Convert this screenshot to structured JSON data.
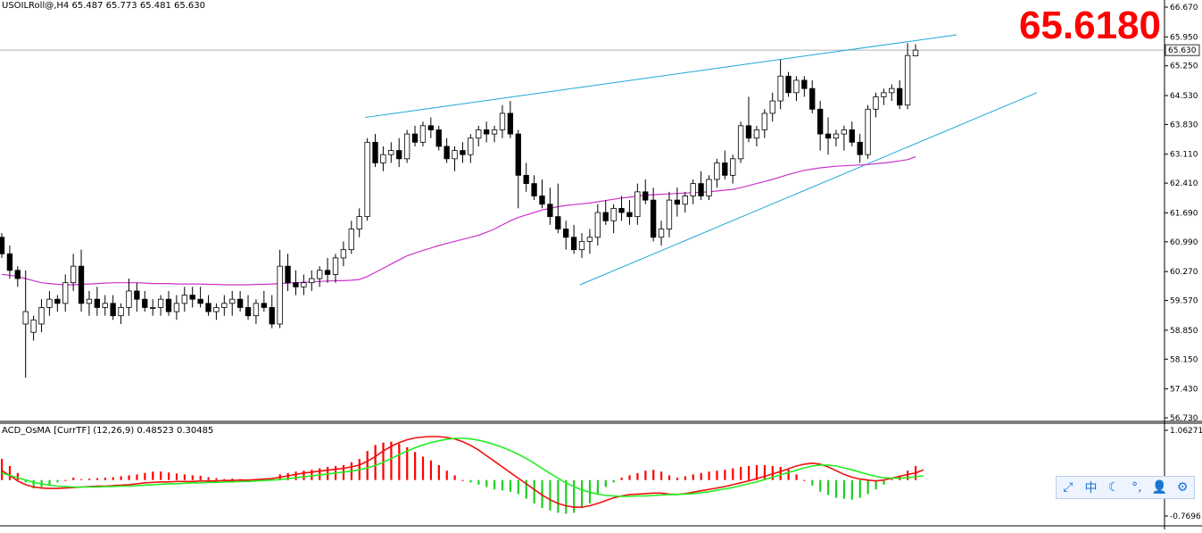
{
  "header": {
    "symbol": "USOILRoll@,H4",
    "ohlc": "65.487 65.773 65.481 65.630",
    "big_price": "65.6180"
  },
  "indicator": {
    "label": "ACD_OsMA [CurrTF] (12,26,9) 0.48523 0.30485"
  },
  "toolbar": {
    "items": [
      {
        "name": "expand-icon",
        "glyph": "⤢"
      },
      {
        "name": "chinese-input-icon",
        "glyph": "中"
      },
      {
        "name": "moon-icon",
        "glyph": "☾"
      },
      {
        "name": "punctuation-icon",
        "glyph": "°,"
      },
      {
        "name": "user-icon",
        "glyph": "👤"
      },
      {
        "name": "gear-icon",
        "glyph": "⚙"
      }
    ]
  },
  "colors": {
    "bull_body": "#ffffff",
    "bear_body": "#000000",
    "candle_outline": "#000000",
    "moving_average": "#cc33cc",
    "trendline": "#1ea7d8",
    "price_line": "#b0b0b0",
    "hist_up": "#ff0000",
    "hist_down": "#22cc22",
    "macd_line": "#ee1111",
    "signal_line": "#22ee22",
    "big_price": "#ff0000"
  },
  "chart_data": [
    {
      "type": "candlestick",
      "yticks": [
        "66.670",
        "65.950",
        "65.250",
        "64.530",
        "63.830",
        "63.110",
        "62.410",
        "61.690",
        "60.990",
        "60.270",
        "59.570",
        "58.850",
        "58.150",
        "57.430",
        "56.730"
      ],
      "ylim": [
        56.73,
        66.67
      ],
      "current_price_label": "65.630",
      "candles": [
        [
          61.1,
          61.2,
          60.6,
          60.7
        ],
        [
          60.7,
          60.9,
          60.1,
          60.3
        ],
        [
          60.3,
          60.4,
          59.9,
          60.1
        ],
        [
          59.0,
          60.3,
          57.7,
          59.3
        ],
        [
          58.8,
          59.2,
          58.6,
          59.1
        ],
        [
          59.0,
          59.6,
          58.8,
          59.4
        ],
        [
          59.4,
          59.8,
          59.2,
          59.6
        ],
        [
          59.6,
          59.7,
          59.3,
          59.5
        ],
        [
          59.5,
          60.2,
          59.3,
          60.0
        ],
        [
          60.0,
          60.7,
          59.8,
          60.4
        ],
        [
          60.4,
          60.8,
          59.3,
          59.5
        ],
        [
          59.5,
          59.8,
          59.2,
          59.6
        ],
        [
          59.6,
          59.9,
          59.2,
          59.4
        ],
        [
          59.4,
          59.7,
          59.2,
          59.5
        ],
        [
          59.5,
          59.7,
          59.1,
          59.2
        ],
        [
          59.2,
          59.5,
          59.0,
          59.4
        ],
        [
          59.4,
          60.1,
          59.2,
          59.8
        ],
        [
          59.8,
          60.0,
          59.3,
          59.6
        ],
        [
          59.6,
          59.8,
          59.3,
          59.4
        ],
        [
          59.4,
          59.6,
          59.2,
          59.4
        ],
        [
          59.4,
          59.7,
          59.2,
          59.6
        ],
        [
          59.6,
          59.8,
          59.2,
          59.3
        ],
        [
          59.3,
          59.7,
          59.1,
          59.5
        ],
        [
          59.5,
          59.9,
          59.3,
          59.7
        ],
        [
          59.7,
          59.9,
          59.4,
          59.6
        ],
        [
          59.6,
          59.9,
          59.4,
          59.5
        ],
        [
          59.5,
          59.7,
          59.2,
          59.3
        ],
        [
          59.3,
          59.5,
          59.1,
          59.4
        ],
        [
          59.4,
          59.7,
          59.2,
          59.5
        ],
        [
          59.5,
          59.8,
          59.2,
          59.6
        ],
        [
          59.6,
          59.8,
          59.3,
          59.4
        ],
        [
          59.4,
          59.7,
          59.1,
          59.2
        ],
        [
          59.2,
          59.6,
          59.0,
          59.5
        ],
        [
          59.5,
          59.8,
          59.3,
          59.4
        ],
        [
          59.4,
          59.7,
          58.9,
          59.0
        ],
        [
          59.0,
          60.8,
          58.9,
          60.4
        ],
        [
          60.4,
          60.7,
          59.8,
          60.0
        ],
        [
          60.0,
          60.3,
          59.7,
          59.9
        ],
        [
          59.9,
          60.2,
          59.7,
          60.0
        ],
        [
          60.0,
          60.3,
          59.8,
          60.1
        ],
        [
          60.1,
          60.4,
          59.9,
          60.3
        ],
        [
          60.3,
          60.6,
          60.0,
          60.2
        ],
        [
          60.2,
          60.7,
          60.0,
          60.6
        ],
        [
          60.6,
          61.0,
          60.4,
          60.8
        ],
        [
          60.8,
          61.5,
          60.7,
          61.3
        ],
        [
          61.3,
          61.8,
          61.1,
          61.6
        ],
        [
          61.6,
          63.5,
          61.5,
          63.4
        ],
        [
          63.4,
          63.6,
          62.8,
          62.9
        ],
        [
          62.9,
          63.3,
          62.7,
          63.1
        ],
        [
          63.1,
          63.4,
          62.9,
          63.2
        ],
        [
          63.2,
          63.5,
          62.8,
          63.0
        ],
        [
          63.0,
          63.7,
          62.9,
          63.6
        ],
        [
          63.6,
          63.8,
          63.3,
          63.4
        ],
        [
          63.4,
          63.9,
          63.3,
          63.8
        ],
        [
          63.8,
          64.0,
          63.5,
          63.7
        ],
        [
          63.7,
          63.8,
          63.2,
          63.3
        ],
        [
          63.3,
          63.5,
          62.9,
          63.0
        ],
        [
          63.0,
          63.3,
          62.7,
          63.2
        ],
        [
          63.2,
          63.4,
          62.9,
          63.1
        ],
        [
          63.1,
          63.6,
          62.9,
          63.5
        ],
        [
          63.5,
          63.8,
          63.3,
          63.7
        ],
        [
          63.7,
          63.9,
          63.4,
          63.6
        ],
        [
          63.6,
          63.8,
          63.4,
          63.7
        ],
        [
          63.7,
          64.3,
          63.5,
          64.1
        ],
        [
          64.1,
          64.4,
          63.5,
          63.6
        ],
        [
          63.6,
          63.7,
          61.8,
          62.6
        ],
        [
          62.6,
          62.9,
          62.2,
          62.4
        ],
        [
          62.4,
          62.6,
          62.0,
          62.1
        ],
        [
          62.1,
          62.5,
          61.8,
          61.9
        ],
        [
          61.9,
          62.3,
          61.4,
          61.6
        ],
        [
          61.6,
          62.4,
          61.2,
          61.3
        ],
        [
          61.3,
          61.5,
          60.8,
          61.1
        ],
        [
          61.1,
          61.4,
          60.7,
          60.8
        ],
        [
          60.8,
          61.2,
          60.6,
          61.0
        ],
        [
          61.0,
          61.3,
          60.7,
          61.1
        ],
        [
          61.1,
          61.9,
          60.9,
          61.7
        ],
        [
          61.7,
          62.0,
          61.4,
          61.5
        ],
        [
          61.5,
          61.9,
          61.2,
          61.8
        ],
        [
          61.8,
          62.1,
          61.5,
          61.7
        ],
        [
          61.7,
          62.0,
          61.4,
          61.6
        ],
        [
          61.6,
          62.4,
          61.4,
          62.2
        ],
        [
          62.2,
          62.5,
          61.9,
          62.0
        ],
        [
          62.0,
          62.3,
          61.0,
          61.1
        ],
        [
          61.1,
          61.5,
          60.9,
          61.3
        ],
        [
          61.3,
          62.2,
          61.1,
          62.0
        ],
        [
          62.0,
          62.3,
          61.6,
          61.9
        ],
        [
          61.9,
          62.2,
          61.7,
          62.1
        ],
        [
          62.1,
          62.5,
          61.9,
          62.4
        ],
        [
          62.4,
          62.7,
          62.0,
          62.1
        ],
        [
          62.1,
          62.6,
          62.0,
          62.5
        ],
        [
          62.5,
          63.0,
          62.3,
          62.9
        ],
        [
          62.9,
          63.2,
          62.5,
          62.6
        ],
        [
          62.6,
          63.1,
          62.4,
          63.0
        ],
        [
          63.0,
          63.9,
          62.9,
          63.8
        ],
        [
          63.8,
          64.5,
          63.4,
          63.5
        ],
        [
          63.5,
          63.8,
          63.3,
          63.7
        ],
        [
          63.7,
          64.2,
          63.5,
          64.1
        ],
        [
          64.1,
          64.6,
          63.9,
          64.4
        ],
        [
          64.4,
          65.4,
          64.2,
          65.0
        ],
        [
          65.0,
          65.1,
          64.5,
          64.6
        ],
        [
          64.6,
          65.0,
          64.4,
          64.9
        ],
        [
          64.9,
          65.0,
          64.5,
          64.7
        ],
        [
          64.7,
          64.9,
          64.1,
          64.2
        ],
        [
          64.2,
          64.4,
          63.2,
          63.6
        ],
        [
          63.6,
          64.0,
          63.1,
          63.5
        ],
        [
          63.5,
          63.7,
          63.3,
          63.6
        ],
        [
          63.6,
          63.8,
          63.2,
          63.7
        ],
        [
          63.7,
          63.9,
          63.3,
          63.4
        ],
        [
          63.4,
          63.6,
          62.9,
          63.1
        ],
        [
          63.1,
          64.3,
          63.0,
          64.2
        ],
        [
          64.2,
          64.6,
          64.0,
          64.5
        ],
        [
          64.5,
          64.7,
          64.3,
          64.6
        ],
        [
          64.6,
          64.8,
          64.4,
          64.7
        ],
        [
          64.7,
          64.9,
          64.2,
          64.3
        ],
        [
          64.3,
          65.8,
          64.2,
          65.5
        ],
        [
          65.49,
          65.77,
          65.48,
          65.63
        ]
      ],
      "moving_average": [
        60.2,
        60.18,
        60.15,
        60.1,
        60.05,
        60.0,
        59.98,
        59.96,
        59.95,
        59.95,
        59.96,
        59.97,
        59.98,
        59.99,
        60.0,
        60.0,
        60.0,
        60.0,
        59.99,
        59.98,
        59.98,
        59.98,
        59.97,
        59.97,
        59.97,
        59.97,
        59.96,
        59.96,
        59.95,
        59.95,
        59.95,
        59.95,
        59.96,
        59.96,
        59.97,
        59.98,
        59.99,
        60.0,
        60.01,
        60.02,
        60.03,
        60.04,
        60.05,
        60.05,
        60.06,
        60.08,
        60.15,
        60.25,
        60.35,
        60.45,
        60.55,
        60.65,
        60.72,
        60.78,
        60.84,
        60.9,
        60.95,
        61.0,
        61.05,
        61.1,
        61.15,
        61.22,
        61.3,
        61.4,
        61.5,
        61.58,
        61.64,
        61.7,
        61.76,
        61.8,
        61.84,
        61.87,
        61.89,
        61.91,
        61.93,
        61.96,
        61.99,
        62.02,
        62.05,
        62.07,
        62.1,
        62.12,
        62.13,
        62.14,
        62.15,
        62.16,
        62.17,
        62.18,
        62.19,
        62.2,
        62.22,
        62.24,
        62.26,
        62.3,
        62.35,
        62.4,
        62.45,
        62.5,
        62.56,
        62.62,
        62.67,
        62.72,
        62.75,
        62.78,
        62.8,
        62.82,
        62.83,
        62.84,
        62.85,
        62.86,
        62.88,
        62.9,
        62.92,
        62.95,
        62.98,
        63.05
      ]
    },
    {
      "type": "histogram-line",
      "yticks": [
        "1.06271",
        "-0.7696"
      ],
      "ylim": [
        -0.7696,
        1.06271
      ],
      "histogram": [
        0.45,
        0.3,
        0.15,
        -0.05,
        -0.18,
        -0.15,
        -0.1,
        -0.05,
        0.0,
        0.05,
        0.02,
        0.03,
        0.04,
        0.05,
        0.06,
        0.08,
        0.1,
        0.12,
        0.15,
        0.18,
        0.18,
        0.16,
        0.14,
        0.12,
        0.1,
        0.09,
        0.06,
        0.04,
        0.02,
        0.03,
        0.02,
        0.01,
        0.02,
        0.03,
        0.02,
        0.12,
        0.15,
        0.18,
        0.2,
        0.22,
        0.25,
        0.28,
        0.3,
        0.32,
        0.38,
        0.45,
        0.62,
        0.75,
        0.8,
        0.82,
        0.78,
        0.7,
        0.6,
        0.5,
        0.42,
        0.32,
        0.2,
        0.1,
        0.0,
        -0.05,
        -0.1,
        -0.15,
        -0.2,
        -0.22,
        -0.25,
        -0.3,
        -0.4,
        -0.5,
        -0.6,
        -0.65,
        -0.7,
        -0.72,
        -0.7,
        -0.6,
        -0.5,
        -0.3,
        -0.15,
        -0.05,
        0.05,
        0.1,
        0.15,
        0.2,
        0.22,
        0.18,
        0.1,
        0.05,
        0.08,
        0.12,
        0.15,
        0.18,
        0.2,
        0.22,
        0.25,
        0.28,
        0.3,
        0.32,
        0.32,
        0.3,
        0.28,
        0.22,
        0.12,
        0.0,
        -0.12,
        -0.25,
        -0.32,
        -0.38,
        -0.4,
        -0.42,
        -0.38,
        -0.3,
        -0.2,
        -0.1,
        0.02,
        0.1,
        0.2,
        0.3
      ],
      "macd": [
        0.2,
        0.1,
        -0.02,
        -0.1,
        -0.15,
        -0.17,
        -0.18,
        -0.18,
        -0.17,
        -0.16,
        -0.15,
        -0.14,
        -0.13,
        -0.13,
        -0.12,
        -0.11,
        -0.1,
        -0.08,
        -0.06,
        -0.05,
        -0.04,
        -0.04,
        -0.03,
        -0.03,
        -0.03,
        -0.02,
        -0.02,
        -0.02,
        -0.01,
        -0.01,
        0.0,
        0.0,
        0.01,
        0.02,
        0.03,
        0.06,
        0.09,
        0.12,
        0.15,
        0.17,
        0.19,
        0.21,
        0.23,
        0.25,
        0.28,
        0.32,
        0.4,
        0.5,
        0.62,
        0.72,
        0.8,
        0.86,
        0.9,
        0.92,
        0.93,
        0.93,
        0.91,
        0.88,
        0.82,
        0.74,
        0.64,
        0.52,
        0.4,
        0.28,
        0.16,
        0.04,
        -0.08,
        -0.2,
        -0.32,
        -0.42,
        -0.5,
        -0.55,
        -0.58,
        -0.58,
        -0.55,
        -0.5,
        -0.44,
        -0.38,
        -0.34,
        -0.31,
        -0.3,
        -0.29,
        -0.28,
        -0.28,
        -0.3,
        -0.31,
        -0.29,
        -0.26,
        -0.23,
        -0.2,
        -0.17,
        -0.14,
        -0.1,
        -0.06,
        -0.02,
        0.03,
        0.08,
        0.13,
        0.18,
        0.24,
        0.3,
        0.34,
        0.36,
        0.34,
        0.28,
        0.2,
        0.12,
        0.06,
        0.02,
        0.0,
        -0.02,
        0.0,
        0.04,
        0.08,
        0.12,
        0.15,
        0.22
      ],
      "signal": [
        0.15,
        0.1,
        0.05,
        0.0,
        -0.05,
        -0.08,
        -0.11,
        -0.13,
        -0.14,
        -0.15,
        -0.15,
        -0.15,
        -0.15,
        -0.14,
        -0.14,
        -0.13,
        -0.13,
        -0.12,
        -0.11,
        -0.1,
        -0.09,
        -0.08,
        -0.08,
        -0.07,
        -0.06,
        -0.06,
        -0.05,
        -0.05,
        -0.04,
        -0.04,
        -0.03,
        -0.03,
        -0.02,
        -0.01,
        0.0,
        0.01,
        0.03,
        0.05,
        0.07,
        0.09,
        0.11,
        0.13,
        0.15,
        0.17,
        0.19,
        0.22,
        0.26,
        0.31,
        0.38,
        0.46,
        0.54,
        0.62,
        0.69,
        0.75,
        0.8,
        0.84,
        0.87,
        0.89,
        0.89,
        0.88,
        0.85,
        0.81,
        0.76,
        0.7,
        0.63,
        0.55,
        0.46,
        0.36,
        0.25,
        0.14,
        0.04,
        -0.06,
        -0.14,
        -0.21,
        -0.26,
        -0.3,
        -0.33,
        -0.34,
        -0.35,
        -0.35,
        -0.34,
        -0.34,
        -0.33,
        -0.32,
        -0.31,
        -0.31,
        -0.3,
        -0.29,
        -0.27,
        -0.25,
        -0.22,
        -0.19,
        -0.16,
        -0.12,
        -0.08,
        -0.04,
        0.01,
        0.06,
        0.11,
        0.16,
        0.21,
        0.26,
        0.3,
        0.32,
        0.32,
        0.3,
        0.26,
        0.22,
        0.17,
        0.12,
        0.08,
        0.05,
        0.04,
        0.04,
        0.05,
        0.07,
        0.09
      ]
    }
  ]
}
